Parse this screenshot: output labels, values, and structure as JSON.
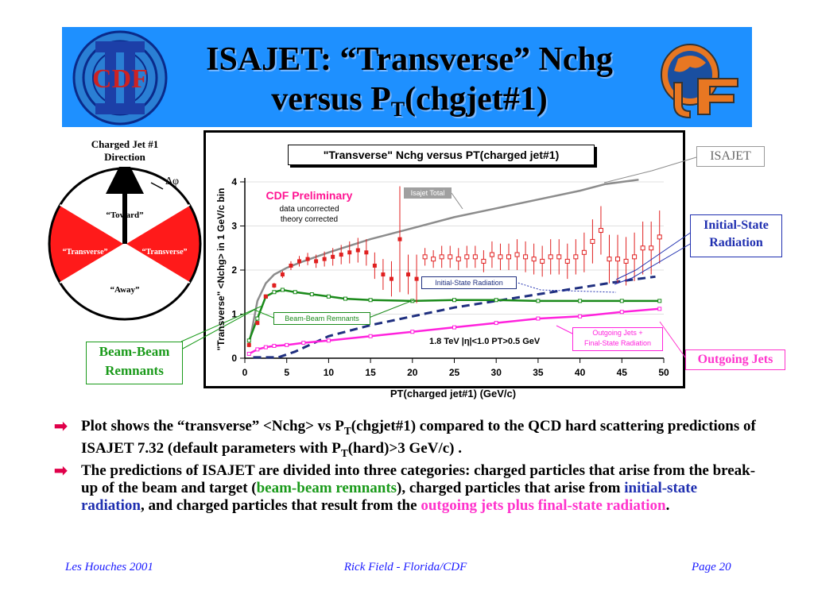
{
  "header": {
    "title_line1": "ISAJET: “Transverse” Nchg",
    "title_line2_pre": "versus P",
    "title_line2_sub": "T",
    "title_line2_post": "(chgjet#1)",
    "cdf_logo_text": "CDF"
  },
  "diagram": {
    "jet_label_line1": "Charged Jet #1",
    "jet_label_line2": "Direction",
    "dphi": "Δφ",
    "toward": "“Toward”",
    "transverse_left": "“Transverse”",
    "transverse_right": "“Transverse”",
    "away": "“Away”"
  },
  "callouts": {
    "isajet": "ISAJET",
    "isr_line1": "Initial-State",
    "isr_line2": "Radiation",
    "bbr_line1": "Beam-Beam",
    "bbr_line2": "Remnants",
    "outgoing": "Outgoing Jets"
  },
  "chart_data": {
    "type": "line",
    "title": "\"Transverse\" Nchg versus PT(charged jet#1)",
    "xlabel": "PT(charged jet#1)  (GeV/c)",
    "ylabel": "\"Transverse\" <Nchg> in 1 GeV/c bin",
    "xlim": [
      0,
      50
    ],
    "ylim": [
      0,
      4
    ],
    "xticks": [
      0,
      5,
      10,
      15,
      20,
      25,
      30,
      35,
      40,
      45,
      50
    ],
    "yticks": [
      0,
      1,
      2,
      3,
      4
    ],
    "annotations": {
      "preliminary": "CDF Preliminary",
      "note1": "data uncorrected",
      "note2": "theory corrected",
      "cuts": "1.8 TeV |η|<1.0 PT>0.5 GeV"
    },
    "legend": {
      "isajet_total": "Isajet Total",
      "isr": "Initial-State Radiation",
      "bbr": "Beam-Beam Remnants",
      "outgoing_line1": "Outgoing Jets +",
      "outgoing_line2": "Final-State Radiation"
    },
    "colors": {
      "total": "#8c8c8c",
      "isr": "#1f2f7f",
      "bbr": "#1a8a1a",
      "outgoing": "#ff22dd",
      "data": "#e02020"
    },
    "series": [
      {
        "name": "Isajet Total",
        "style": "solid",
        "x": [
          0.5,
          1.5,
          2.5,
          3.5,
          5,
          7,
          10,
          15,
          20,
          25,
          30,
          35,
          40,
          43,
          47
        ],
        "values": [
          0.3,
          1.3,
          1.7,
          1.9,
          2.05,
          2.2,
          2.4,
          2.7,
          2.95,
          3.2,
          3.4,
          3.6,
          3.8,
          3.95,
          4.05
        ]
      },
      {
        "name": "Initial-State Radiation",
        "style": "dashed",
        "x": [
          1,
          2,
          4,
          6,
          10,
          15,
          20,
          25,
          30,
          35,
          40,
          45,
          49
        ],
        "values": [
          0.02,
          0.02,
          0.02,
          0.15,
          0.5,
          0.75,
          0.95,
          1.15,
          1.3,
          1.45,
          1.6,
          1.75,
          1.85
        ]
      },
      {
        "name": "Beam-Beam Remnants",
        "style": "solid",
        "x": [
          0.5,
          1.5,
          2.5,
          3.5,
          4.5,
          6,
          8,
          10,
          12,
          15,
          20,
          25,
          30,
          35,
          40,
          45,
          49.5
        ],
        "values": [
          0.4,
          0.9,
          1.4,
          1.5,
          1.55,
          1.5,
          1.45,
          1.4,
          1.35,
          1.32,
          1.3,
          1.32,
          1.32,
          1.3,
          1.3,
          1.3,
          1.3
        ]
      },
      {
        "name": "Outgoing Jets + Final-State Radiation",
        "style": "solid",
        "x": [
          0.5,
          1.5,
          2.5,
          3.5,
          5,
          7,
          10,
          15,
          20,
          25,
          30,
          35,
          40,
          45,
          49.5
        ],
        "values": [
          0.1,
          0.2,
          0.25,
          0.28,
          0.3,
          0.35,
          0.4,
          0.5,
          0.6,
          0.7,
          0.8,
          0.9,
          0.95,
          1.05,
          1.12
        ]
      }
    ],
    "data_points": {
      "x": [
        0.5,
        1.5,
        2.5,
        3.5,
        4.5,
        5.5,
        6.5,
        7.5,
        8.5,
        9.5,
        10.5,
        11.5,
        12.5,
        13.5,
        14.5,
        15.5,
        16.5,
        17.5,
        18.5,
        19.5,
        20.5
      ],
      "y": [
        0.3,
        0.8,
        1.4,
        1.65,
        1.9,
        2.1,
        2.2,
        2.25,
        2.2,
        2.25,
        2.3,
        2.35,
        2.4,
        2.45,
        2.4,
        2.1,
        1.9,
        1.8,
        2.7,
        1.9,
        1.8
      ],
      "err": [
        0.05,
        0.05,
        0.05,
        0.06,
        0.08,
        0.1,
        0.12,
        0.14,
        0.15,
        0.17,
        0.2,
        0.22,
        0.25,
        0.28,
        0.3,
        0.3,
        0.35,
        0.4,
        1.2,
        0.45,
        0.55
      ]
    },
    "model_points": {
      "x": [
        21.5,
        22.5,
        23.5,
        24.5,
        25.5,
        26.5,
        27.5,
        28.5,
        29.5,
        30.5,
        31.5,
        32.5,
        33.5,
        34.5,
        35.5,
        36.5,
        37.5,
        38.5,
        39.5,
        40.5,
        41.5,
        42.5,
        43.5,
        44.5,
        45.5,
        46.5,
        47.5,
        48.5,
        49.5
      ],
      "y": [
        2.3,
        2.25,
        2.3,
        2.3,
        2.25,
        2.3,
        2.3,
        2.2,
        2.35,
        2.3,
        2.3,
        2.35,
        2.3,
        2.25,
        2.2,
        2.3,
        2.3,
        2.2,
        2.3,
        2.4,
        2.65,
        2.9,
        2.25,
        2.25,
        2.2,
        2.3,
        2.5,
        2.5,
        2.75
      ],
      "err": [
        0.2,
        0.2,
        0.25,
        0.25,
        0.25,
        0.25,
        0.25,
        0.25,
        0.3,
        0.3,
        0.3,
        0.35,
        0.35,
        0.35,
        0.35,
        0.4,
        0.4,
        0.4,
        0.4,
        0.45,
        0.5,
        0.55,
        0.55,
        0.55,
        0.55,
        0.55,
        0.6,
        0.6,
        0.6
      ]
    }
  },
  "bullets": {
    "b1_a": "Plot shows the “transverse” <Nchg> vs P",
    "b1_sub1": "T",
    "b1_b": "(chgjet#1) compared to the QCD hard scattering predictions of ISAJET 7.32 (default parameters with P",
    "b1_sub2": "T",
    "b1_c": "(hard)>3 GeV/c) .",
    "b2_a": "The predictions of ISAJET are divided into three categories: charged particles that arise from the break-up of the beam and target (",
    "b2_bbr": "beam-beam remnants",
    "b2_b": "), charged particles that arise from ",
    "b2_isr": "initial-state radiation",
    "b2_c": ", and charged particles that result from the ",
    "b2_out": "outgoing jets plus final-state radiation",
    "b2_d": "."
  },
  "footer": {
    "left": "Les Houches 2001",
    "center": "Rick Field - Florida/CDF",
    "right": "Page 20"
  }
}
